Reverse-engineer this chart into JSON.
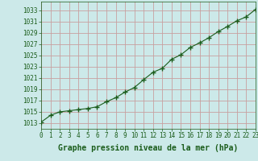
{
  "x": [
    0,
    1,
    2,
    3,
    4,
    5,
    6,
    7,
    8,
    9,
    10,
    11,
    12,
    13,
    14,
    15,
    16,
    17,
    18,
    19,
    20,
    21,
    22,
    23
  ],
  "y": [
    1013.2,
    1014.4,
    1015.0,
    1015.2,
    1015.4,
    1015.6,
    1015.9,
    1016.8,
    1017.5,
    1018.5,
    1019.3,
    1020.7,
    1022.0,
    1022.7,
    1024.3,
    1025.1,
    1026.4,
    1027.2,
    1028.1,
    1029.2,
    1030.1,
    1031.1,
    1031.8,
    1033.1
  ],
  "line_color": "#1a5c1a",
  "marker": "+",
  "marker_size": 4,
  "background_color": "#cce9e9",
  "grid_color": "#c8a0a0",
  "xlabel": "Graphe pression niveau de la mer (hPa)",
  "xlabel_fontsize": 7,
  "ytick_labels": [
    1013,
    1015,
    1017,
    1019,
    1021,
    1023,
    1025,
    1027,
    1029,
    1031,
    1033
  ],
  "ylim": [
    1012.0,
    1034.5
  ],
  "xlim": [
    0,
    23
  ],
  "xtick_labels": [
    "0",
    "1",
    "2",
    "3",
    "4",
    "5",
    "6",
    "7",
    "8",
    "9",
    "10",
    "11",
    "12",
    "13",
    "14",
    "15",
    "16",
    "17",
    "18",
    "19",
    "20",
    "21",
    "22",
    "23"
  ],
  "tick_color": "#1a5c1a",
  "tick_fontsize": 5.5
}
